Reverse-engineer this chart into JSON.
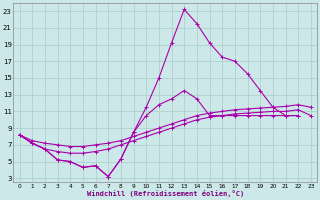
{
  "xlabel": "Windchill (Refroidissement éolien,°C)",
  "xlim": [
    -0.5,
    23.5
  ],
  "ylim": [
    2.5,
    24
  ],
  "yticks": [
    3,
    5,
    7,
    9,
    11,
    13,
    15,
    17,
    19,
    21,
    23
  ],
  "xticks": [
    0,
    1,
    2,
    3,
    4,
    5,
    6,
    7,
    8,
    9,
    10,
    11,
    12,
    13,
    14,
    15,
    16,
    17,
    18,
    19,
    20,
    21,
    22,
    23
  ],
  "bg_color": "#cce8e8",
  "grid_color": "#aacccc",
  "line_color": "#aa00aa",
  "series": [
    {
      "x": [
        0,
        1,
        2,
        3,
        4,
        5,
        6,
        7,
        8,
        9,
        10,
        11,
        12,
        13,
        14,
        15,
        16,
        17,
        18,
        19,
        20,
        21,
        22
      ],
      "y": [
        8.2,
        7.2,
        6.5,
        5.2,
        5.0,
        4.3,
        4.5,
        3.2,
        5.3,
        8.5,
        11.5,
        15.0,
        19.2,
        23.2,
        21.5,
        19.2,
        17.5,
        17.0,
        15.5,
        13.5,
        11.5,
        10.5,
        10.5
      ]
    },
    {
      "x": [
        0,
        1,
        2,
        3,
        4,
        5,
        6,
        7,
        8,
        9,
        10,
        11,
        12,
        13,
        14,
        15,
        16,
        17,
        18,
        19,
        20,
        21,
        22,
        23
      ],
      "y": [
        8.2,
        7.5,
        7.2,
        7.0,
        6.8,
        6.8,
        7.0,
        7.2,
        7.5,
        8.0,
        8.5,
        9.0,
        9.5,
        10.0,
        10.5,
        10.8,
        11.0,
        11.2,
        11.3,
        11.4,
        11.5,
        11.6,
        11.8,
        11.5
      ]
    },
    {
      "x": [
        0,
        1,
        2,
        3,
        4,
        5,
        6,
        7,
        8,
        9,
        10,
        11,
        12,
        13,
        14,
        15,
        16,
        17,
        18,
        19,
        20,
        21,
        22,
        23
      ],
      "y": [
        8.2,
        7.2,
        6.5,
        6.2,
        6.0,
        6.0,
        6.2,
        6.5,
        7.0,
        7.5,
        8.0,
        8.5,
        9.0,
        9.5,
        10.0,
        10.3,
        10.5,
        10.7,
        10.8,
        10.9,
        11.0,
        11.0,
        11.2,
        10.5
      ]
    },
    {
      "x": [
        0,
        1,
        2,
        3,
        4,
        5,
        6,
        7,
        8,
        9,
        10,
        11,
        12,
        13,
        14,
        15,
        16,
        17,
        18,
        19,
        20,
        21,
        22
      ],
      "y": [
        8.2,
        7.2,
        6.5,
        5.2,
        5.0,
        4.3,
        4.5,
        3.2,
        5.3,
        8.5,
        10.5,
        11.8,
        12.5,
        13.5,
        12.5,
        10.5,
        10.5,
        10.5,
        10.5,
        10.5,
        10.5,
        10.5,
        10.5
      ]
    }
  ]
}
